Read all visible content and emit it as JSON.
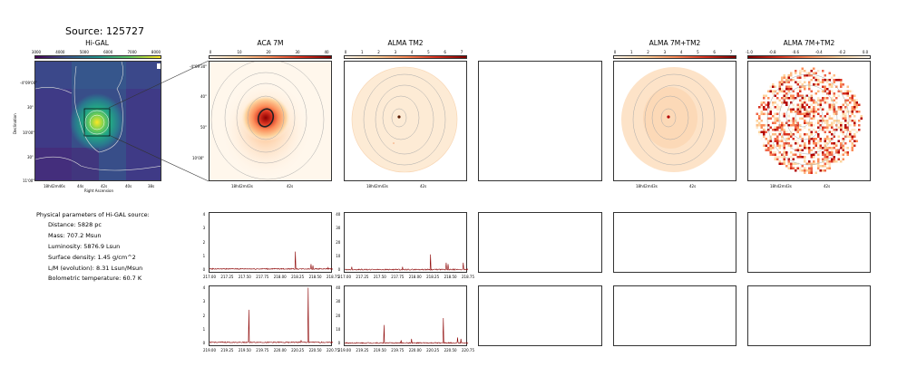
{
  "source_title": "Source: 125727",
  "physical": {
    "heading": "Physical parameters of Hi-GAL source:",
    "lines": [
      "Distance: 5828 pc",
      "Mass: 707.2 Msun",
      "Luminosity: 5876.9 Lsun",
      "Surface density: 1.45 g/cm^2",
      "L/M (evolution): 8.31 Lsun/Msun",
      "Bolometric temperature: 60.7 K"
    ]
  },
  "chart_data": [
    {
      "type": "heatmap",
      "title": "Hi-GAL",
      "colorbar_ticks": [
        "3000",
        "4000",
        "5000",
        "6000",
        "7000",
        "8000"
      ],
      "xlabel": "Right Ascension",
      "ylabel": "Declination",
      "x_ticks": [
        "18h42m46s",
        "44s",
        "42s",
        "40s",
        "38s"
      ],
      "y_ticks": [
        "-4°09'00\"",
        "30\"",
        "10'00\"",
        "30\"",
        "11'00\""
      ],
      "colormap": "viridis"
    },
    {
      "type": "heatmap",
      "title": "ACA 7M",
      "colorbar_ticks": [
        "0",
        "10",
        "20",
        "30",
        "40"
      ],
      "x_ticks": [
        "18h42m43s",
        "42s"
      ],
      "y_ticks": [
        "-4°09'30\"",
        "40\"",
        "50\"",
        "10'00\""
      ],
      "colormap": "orange-red"
    },
    {
      "type": "heatmap",
      "title": "ALMA TM2",
      "colorbar_ticks": [
        "0",
        "1",
        "2",
        "3",
        "4",
        "5",
        "6",
        "7"
      ],
      "x_ticks": [
        "18h42m43s",
        "42s"
      ],
      "colormap": "orange-red"
    },
    {
      "type": "heatmap",
      "title": "ALMA 7M+TM2",
      "colorbar_ticks": [
        "0",
        "1",
        "2",
        "3",
        "4",
        "5",
        "6",
        "7"
      ],
      "x_ticks": [
        "18h42m43s",
        "42s"
      ],
      "colormap": "orange-red"
    },
    {
      "type": "heatmap",
      "title": "ALMA 7M+TM2",
      "colorbar_ticks": [
        "-1.0",
        "-0.8",
        "-0.6",
        "-0.4",
        "-0.2",
        "0.0"
      ],
      "x_ticks": [
        "18h42m43s",
        "42s"
      ],
      "colormap": "orange-red"
    },
    {
      "type": "line",
      "panel": "aca-spectrum-top",
      "xlim": [
        217.0,
        218.75
      ],
      "ylim": [
        0,
        4
      ],
      "x_ticks": [
        "217.00",
        "217.25",
        "217.50",
        "217.75",
        "218.00",
        "218.25",
        "218.50",
        "218.75"
      ],
      "y_ticks": [
        "0",
        "1",
        "2",
        "3",
        "4"
      ],
      "baseline": 0.15,
      "peaks": [
        [
          218.22,
          1.4
        ],
        [
          218.44,
          0.5
        ],
        [
          218.47,
          0.4
        ],
        [
          218.68,
          0.25
        ]
      ]
    },
    {
      "type": "line",
      "panel": "tm2-spectrum-top",
      "xlim": [
        217.0,
        218.75
      ],
      "ylim": [
        0,
        40
      ],
      "x_ticks": [
        "217.00",
        "217.25",
        "217.50",
        "217.75",
        "218.00",
        "218.25",
        "218.50",
        "218.75"
      ],
      "y_ticks": [
        "0",
        "10",
        "20",
        "30",
        "40"
      ],
      "baseline": 1,
      "peaks": [
        [
          218.22,
          12
        ],
        [
          218.44,
          6
        ],
        [
          218.47,
          5
        ],
        [
          218.68,
          6
        ],
        [
          217.1,
          3
        ],
        [
          217.82,
          3
        ]
      ]
    },
    {
      "type": "line",
      "panel": "aca-spectrum-bottom",
      "xlim": [
        219.0,
        220.75
      ],
      "ylim": [
        0,
        4
      ],
      "x_ticks": [
        "219.00",
        "219.25",
        "219.50",
        "219.75",
        "220.00",
        "220.25",
        "220.50",
        "220.75"
      ],
      "y_ticks": [
        "0",
        "1",
        "2",
        "3",
        "4"
      ],
      "baseline": 0.15,
      "peaks": [
        [
          219.56,
          2.5
        ],
        [
          220.4,
          4.1
        ],
        [
          220.3,
          0.3
        ]
      ]
    },
    {
      "type": "line",
      "panel": "tm2-spectrum-bottom",
      "xlim": [
        219.0,
        220.75
      ],
      "ylim": [
        0,
        40
      ],
      "x_ticks": [
        "219.00",
        "219.25",
        "219.50",
        "219.75",
        "220.00",
        "220.25",
        "220.50",
        "220.75"
      ],
      "y_ticks": [
        "0",
        "10",
        "20",
        "30",
        "40"
      ],
      "baseline": 1,
      "peaks": [
        [
          219.56,
          14
        ],
        [
          220.4,
          19
        ],
        [
          219.95,
          4
        ],
        [
          220.6,
          5
        ],
        [
          220.65,
          4
        ],
        [
          219.8,
          3
        ]
      ]
    }
  ]
}
